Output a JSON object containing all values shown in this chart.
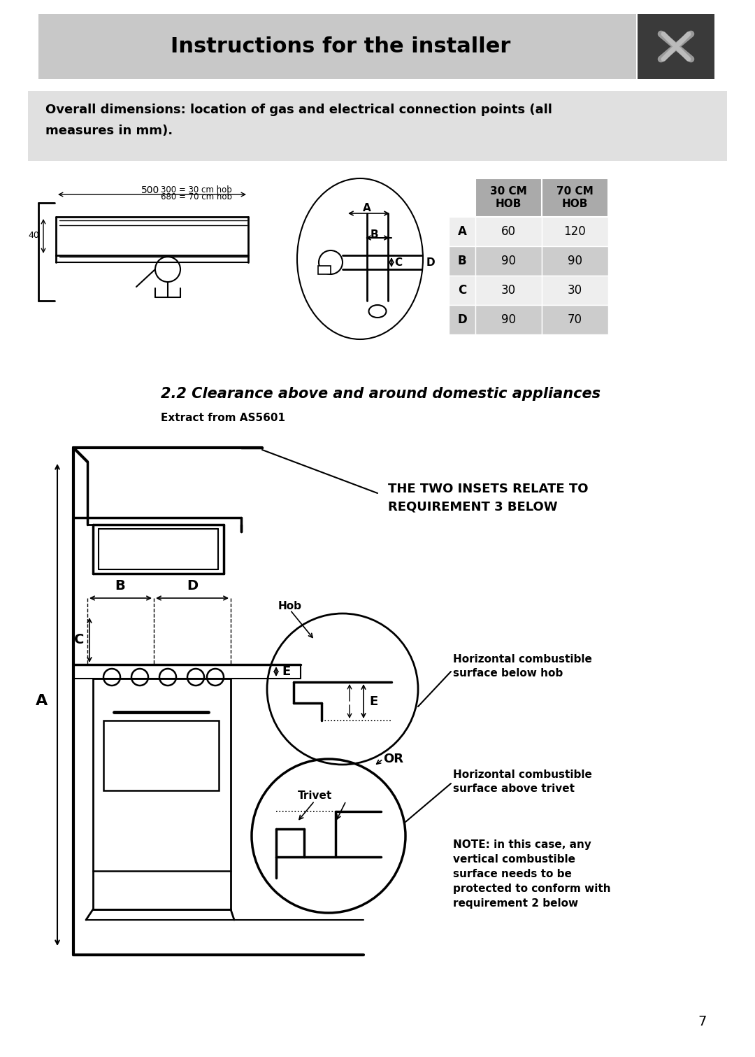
{
  "title": "Instructions for the installer",
  "bg_color": "#ffffff",
  "header_bg": "#c8c8c8",
  "header_icon_bg": "#3a3a3a",
  "section1_text_line1": "Overall dimensions: location of gas and electrical connection points (all",
  "section1_text_line2": "measures in mm).",
  "section1_bg": "#e0e0e0",
  "table_headers": [
    "30 CM\nHOB",
    "70 CM\nHOB"
  ],
  "table_rows": [
    [
      "A",
      "60",
      "120"
    ],
    [
      "B",
      "90",
      "90"
    ],
    [
      "C",
      "30",
      "30"
    ],
    [
      "D",
      "90",
      "70"
    ]
  ],
  "table_header_bg": "#aaaaaa",
  "table_row_shade_bg": "#cccccc",
  "table_row_light_bg": "#eeeeee",
  "section2_title": "2.2 Clearance above and around domestic appliances",
  "section2_subtitle": "Extract from AS5601",
  "inset_note": "THE TWO INSETS RELATE TO\nREQUIREMENT 3 BELOW",
  "hob_label": "Hob",
  "trivet_label": "Trivet",
  "label_E": "E",
  "label_B": "B",
  "label_D": "D",
  "label_A": "A",
  "label_C": "C",
  "label_OR": "OR",
  "text_hob_combustible": "Horizontal combustible\nsurface below hob",
  "text_trivet_combustible": "Horizontal combustible\nsurface above trivet",
  "text_note": "NOTE: in this case, any\nvertical combustible\nsurface needs to be\nprotected to conform with\nrequirement 2 below",
  "dim_500": "500",
  "dim_300": "300 = 30 cm hob",
  "dim_680": "680 = 70 cm hob",
  "dim_40": "40",
  "page_number": "7"
}
